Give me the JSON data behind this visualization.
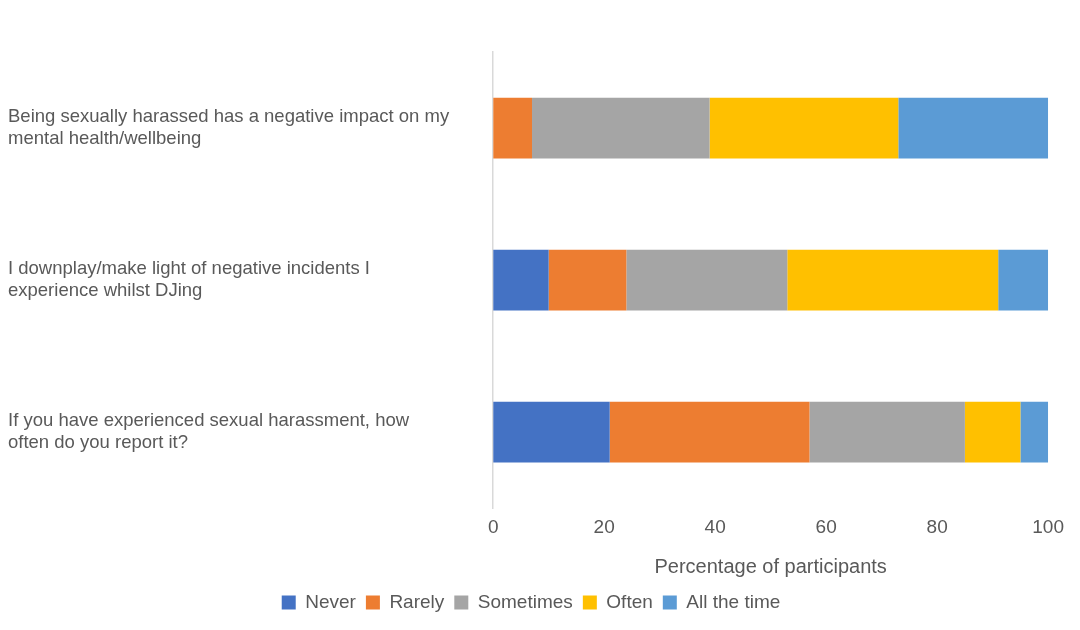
{
  "chart_data": {
    "type": "bar",
    "orientation": "horizontal",
    "stacked": true,
    "xlabel": "Percentage of participants",
    "categories": [
      "Being sexually harassed has a negative impact on my mental health/wellbeing",
      "I downplay/make light of negative incidents I experience whilst DJing",
      "If you have experienced sexual harassment, how often do you report it?"
    ],
    "series": [
      {
        "name": "Never",
        "color": "#4472c4",
        "values": [
          0,
          10,
          21
        ]
      },
      {
        "name": "Rarely",
        "color": "#ed7d31",
        "values": [
          7,
          14,
          36
        ]
      },
      {
        "name": "Sometimes",
        "color": "#a5a5a5",
        "values": [
          32,
          29,
          28
        ]
      },
      {
        "name": "Often",
        "color": "#ffc000",
        "values": [
          34,
          38,
          10
        ]
      },
      {
        "name": "All the time",
        "color": "#5b9bd5",
        "values": [
          27,
          9,
          5
        ]
      }
    ],
    "xlim": [
      0,
      100
    ],
    "xticks": [
      0,
      20,
      40,
      60,
      80,
      100
    ],
    "grid": false,
    "legend": "bottom"
  }
}
